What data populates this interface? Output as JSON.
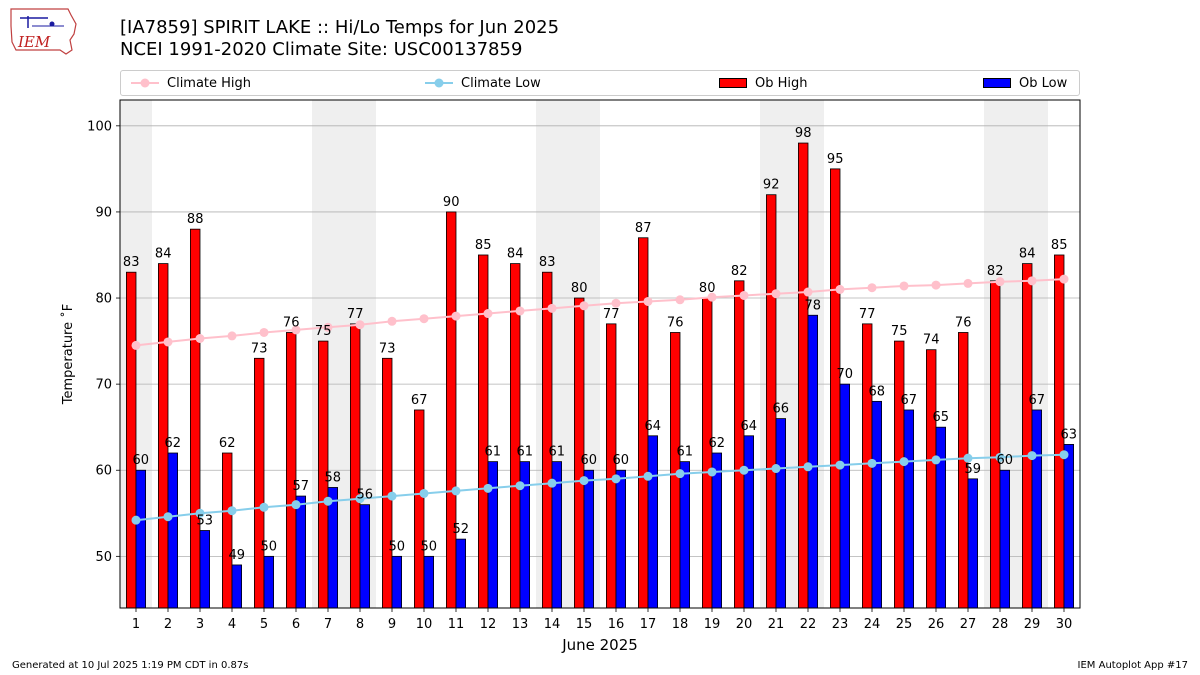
{
  "header": {
    "title_line1": "[IA7859] SPIRIT LAKE :: Hi/Lo Temps for Jun 2025",
    "title_line2": "NCEI 1991-2020 Climate Site: USC00137859",
    "logo_text": "IEM"
  },
  "footer": {
    "generated": "Generated at 10 Jul 2025 1:19 PM CDT in 0.87s",
    "app": "IEM Autoplot App #17"
  },
  "colors": {
    "ob_high": "#ff0000",
    "ob_low": "#0000ff",
    "climate_high": "#ffc0cb",
    "climate_low": "#87ceeb",
    "weekend_band": "#efefef",
    "grid": "#b0b0b0"
  },
  "chart_data": {
    "type": "bar",
    "title": "[IA7859] SPIRIT LAKE :: Hi/Lo Temps for Jun 2025",
    "subtitle": "NCEI 1991-2020 Climate Site: USC00137859",
    "xlabel": "June 2025",
    "ylabel": "Temperature ˚F",
    "ylim": [
      44,
      103
    ],
    "yticks": [
      50,
      60,
      70,
      80,
      90,
      100
    ],
    "grid": true,
    "legend_position": "top",
    "categories": [
      "1",
      "2",
      "3",
      "4",
      "5",
      "6",
      "7",
      "8",
      "9",
      "10",
      "11",
      "12",
      "13",
      "14",
      "15",
      "16",
      "17",
      "18",
      "19",
      "20",
      "21",
      "22",
      "23",
      "24",
      "25",
      "26",
      "27",
      "28",
      "29",
      "30"
    ],
    "shaded_days": [
      "1",
      "7",
      "8",
      "14",
      "15",
      "21",
      "22",
      "28",
      "29"
    ],
    "series": [
      {
        "name": "Ob High",
        "kind": "bar",
        "values": [
          83,
          84,
          88,
          62,
          73,
          76,
          75,
          77,
          73,
          67,
          90,
          85,
          84,
          83,
          80,
          77,
          87,
          76,
          80,
          82,
          92,
          98,
          95,
          77,
          75,
          74,
          76,
          82,
          84,
          85
        ]
      },
      {
        "name": "Ob Low",
        "kind": "bar",
        "values": [
          60,
          62,
          53,
          49,
          50,
          57,
          58,
          56,
          50,
          50,
          52,
          61,
          61,
          61,
          60,
          60,
          64,
          61,
          62,
          64,
          66,
          78,
          70,
          68,
          67,
          65,
          59,
          60,
          67,
          63
        ]
      },
      {
        "name": "Climate High",
        "kind": "line",
        "values": [
          74.5,
          74.9,
          75.3,
          75.6,
          76.0,
          76.3,
          76.6,
          76.9,
          77.3,
          77.6,
          77.9,
          78.2,
          78.5,
          78.8,
          79.1,
          79.4,
          79.6,
          79.8,
          80.1,
          80.3,
          80.5,
          80.7,
          81.0,
          81.2,
          81.4,
          81.5,
          81.7,
          81.9,
          82.0,
          82.2
        ]
      },
      {
        "name": "Climate Low",
        "kind": "line",
        "values": [
          54.2,
          54.6,
          55.0,
          55.3,
          55.7,
          56.0,
          56.4,
          56.7,
          57.0,
          57.3,
          57.6,
          57.9,
          58.2,
          58.5,
          58.8,
          59.0,
          59.3,
          59.6,
          59.8,
          60.0,
          60.2,
          60.4,
          60.6,
          60.8,
          61.0,
          61.2,
          61.4,
          61.5,
          61.7,
          61.8
        ]
      }
    ]
  }
}
